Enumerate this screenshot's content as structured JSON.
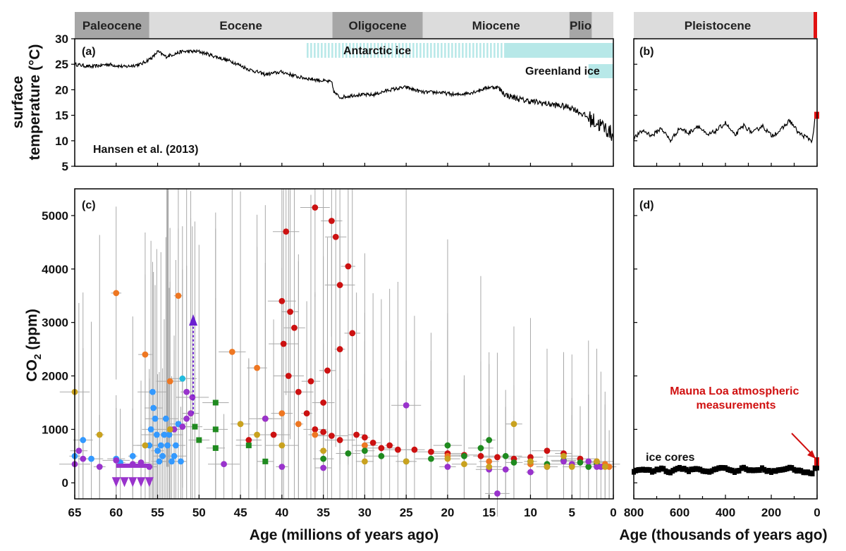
{
  "chart_data": [
    {
      "panel": "(a)",
      "type": "line",
      "title": "",
      "xlabel": "",
      "ylabel_lines": [
        "surface",
        "temperature (°C)"
      ],
      "xlim": [
        65,
        0
      ],
      "ylim": [
        5,
        30
      ],
      "yticks": [
        5,
        10,
        15,
        20,
        25,
        30
      ],
      "annotation": "Hansen et al. (2013)",
      "ice_labels": {
        "antarctic": "Antarctic ice",
        "greenland": "Greenland ice"
      },
      "antarctic_ice": {
        "intermittent": [
          37,
          13
        ],
        "continuous": [
          13,
          0
        ]
      },
      "greenland_ice": {
        "continuous": [
          3,
          0
        ]
      },
      "epochs": [
        {
          "name": "Paleocene",
          "start": 65,
          "end": 56
        },
        {
          "name": "Eocene",
          "start": 56,
          "end": 33.9
        },
        {
          "name": "Oligocene",
          "start": 33.9,
          "end": 23
        },
        {
          "name": "Miocene",
          "start": 23,
          "end": 5.3
        },
        {
          "name": "Plio",
          "start": 5.3,
          "end": 2.6
        }
      ],
      "x": [
        65,
        63,
        61,
        59,
        57,
        55.5,
        55,
        54,
        52,
        50,
        48,
        46,
        44,
        42,
        40,
        38,
        36,
        34,
        33.7,
        33,
        31,
        29,
        27,
        25,
        23,
        21,
        19,
        17,
        15,
        14,
        13,
        11,
        9,
        7,
        5,
        4,
        3,
        2,
        1,
        0
      ],
      "y": [
        25,
        24.5,
        25,
        24.5,
        25,
        26.5,
        27.5,
        26.5,
        27.5,
        27.5,
        26.5,
        25.5,
        24,
        23,
        23.5,
        22.5,
        22,
        21.5,
        19.5,
        18.5,
        19,
        19,
        20,
        20.5,
        19.5,
        19.5,
        19,
        19.5,
        20.5,
        20.5,
        19,
        18,
        17.5,
        17,
        16.5,
        15.5,
        14.5,
        13.5,
        12.5,
        11
      ]
    },
    {
      "panel": "(b)",
      "type": "line",
      "epoch": "Pleistocene",
      "xlim": [
        800,
        0
      ],
      "ylim": [
        5,
        30
      ],
      "x": [
        800,
        760,
        720,
        680,
        640,
        600,
        560,
        520,
        480,
        440,
        400,
        360,
        320,
        280,
        240,
        200,
        160,
        120,
        80,
        40,
        20,
        10,
        0
      ],
      "y": [
        10.5,
        12,
        11,
        12.5,
        10,
        12.5,
        11.5,
        13,
        11,
        12,
        13.5,
        11,
        13,
        11.5,
        13,
        11,
        12,
        14,
        11.5,
        10.5,
        10,
        14.5,
        15
      ],
      "modern_value": 15
    },
    {
      "panel": "(c)",
      "type": "scatter",
      "xlabel": "Age (millions of years ago)",
      "ylabel": "CO2 (ppm)",
      "xlim": [
        65,
        0
      ],
      "ylim": [
        -300,
        5500
      ],
      "xticks": [
        65,
        60,
        55,
        50,
        45,
        40,
        35,
        30,
        25,
        20,
        15,
        10,
        5,
        0
      ],
      "yticks": [
        0,
        1000,
        2000,
        3000,
        4000,
        5000
      ],
      "colors": {
        "red": "#cc1111",
        "orange": "#ee7722",
        "green": "#1f8a1f",
        "blue": "#3399ff",
        "purple": "#9933cc",
        "gold": "#c9a21f",
        "cyan": "#22bbdd",
        "errorbar": "#a9a9a9"
      },
      "series": [
        {
          "color": "red",
          "points": [
            [
              40,
              3400
            ],
            [
              39.5,
              4700
            ],
            [
              39,
              3200
            ],
            [
              38.5,
              2900
            ],
            [
              39.8,
              2600
            ],
            [
              39.2,
              2000
            ],
            [
              38,
              1700
            ],
            [
              36,
              5150
            ],
            [
              34,
              4900
            ],
            [
              33.5,
              4600
            ],
            [
              33,
              3700
            ],
            [
              32,
              4050
            ],
            [
              31.5,
              2800
            ],
            [
              33,
              2500
            ],
            [
              34.5,
              2100
            ],
            [
              35,
              1500
            ],
            [
              36,
              1000
            ],
            [
              35,
              950
            ],
            [
              34,
              880
            ],
            [
              33,
              800
            ],
            [
              31,
              900
            ],
            [
              30,
              850
            ],
            [
              29,
              750
            ],
            [
              28,
              650
            ],
            [
              27,
              700
            ],
            [
              26,
              620
            ],
            [
              24,
              620
            ],
            [
              22,
              580
            ],
            [
              20,
              550
            ],
            [
              18,
              520
            ],
            [
              16,
              500
            ],
            [
              14,
              480
            ],
            [
              12,
              450
            ],
            [
              10,
              480
            ],
            [
              8,
              600
            ],
            [
              6,
              550
            ],
            [
              4,
              450
            ],
            [
              2,
              400
            ],
            [
              44,
              800
            ],
            [
              42,
              1200
            ],
            [
              41,
              900
            ],
            [
              37,
              1300
            ],
            [
              36.5,
              1900
            ]
          ]
        },
        {
          "color": "orange",
          "points": [
            [
              60,
              3550
            ],
            [
              56.5,
              2400
            ],
            [
              53.5,
              1900
            ],
            [
              52.5,
              3500
            ],
            [
              51,
              1300
            ],
            [
              46,
              2450
            ],
            [
              43,
              2150
            ],
            [
              40,
              1300
            ],
            [
              38,
              1100
            ],
            [
              36,
              900
            ],
            [
              30,
              700
            ],
            [
              20,
              500
            ],
            [
              15,
              400
            ],
            [
              10,
              350
            ],
            [
              5,
              350
            ],
            [
              2,
              380
            ],
            [
              1,
              350
            ],
            [
              0.5,
              300
            ]
          ]
        },
        {
          "color": "green",
          "points": [
            [
              50.5,
              1050
            ],
            [
              50,
              800
            ],
            [
              48,
              1500
            ],
            [
              48,
              1000
            ],
            [
              48,
              650
            ],
            [
              44,
              700
            ],
            [
              42,
              400
            ],
            [
              35,
              450
            ],
            [
              32,
              550
            ],
            [
              30,
              600
            ],
            [
              28,
              500
            ],
            [
              25,
              400
            ],
            [
              22,
              450
            ],
            [
              20,
              700
            ],
            [
              18,
              500
            ],
            [
              16,
              650
            ],
            [
              15,
              800
            ],
            [
              13,
              500
            ],
            [
              12,
              380
            ],
            [
              10,
              400
            ],
            [
              8,
              350
            ],
            [
              6,
              420
            ],
            [
              4,
              380
            ],
            [
              3,
              300
            ],
            [
              2,
              350
            ]
          ]
        },
        {
          "color": "blue",
          "points": [
            [
              65,
              500
            ],
            [
              64,
              800
            ],
            [
              63,
              450
            ],
            [
              60,
              450
            ],
            [
              59.5,
              380
            ],
            [
              58,
              500
            ],
            [
              57,
              350
            ],
            [
              56,
              700
            ],
            [
              55.8,
              1000
            ],
            [
              55.6,
              1700
            ],
            [
              55.5,
              1400
            ],
            [
              55.3,
              1200
            ],
            [
              55.1,
              900
            ],
            [
              55,
              600
            ],
            [
              54.8,
              400
            ],
            [
              54.6,
              700
            ],
            [
              54.4,
              500
            ],
            [
              54.2,
              900
            ],
            [
              54,
              1200
            ],
            [
              53.8,
              700
            ],
            [
              53.6,
              900
            ],
            [
              53.3,
              400
            ],
            [
              53,
              500
            ],
            [
              52.8,
              700
            ],
            [
              52.5,
              1100
            ],
            [
              52.2,
              400
            ]
          ]
        },
        {
          "color": "purple",
          "points": [
            [
              65,
              350
            ],
            [
              64.5,
              600
            ],
            [
              64,
              450
            ],
            [
              62,
              300
            ],
            [
              60,
              420
            ],
            [
              58,
              350
            ],
            [
              57,
              380
            ],
            [
              56,
              300
            ],
            [
              53,
              1000
            ],
            [
              52,
              1050
            ],
            [
              51.5,
              1200
            ],
            [
              51,
              1300
            ],
            [
              50.8,
              1600
            ],
            [
              51.5,
              1700
            ],
            [
              47,
              350
            ],
            [
              42,
              1200
            ],
            [
              40,
              300
            ],
            [
              35,
              280
            ],
            [
              25,
              1450
            ],
            [
              20,
              300
            ],
            [
              15,
              250
            ],
            [
              13,
              250
            ],
            [
              10,
              200
            ],
            [
              8,
              300
            ],
            [
              6,
              400
            ],
            [
              5,
              350
            ],
            [
              3,
              400
            ],
            [
              2,
              300
            ],
            [
              1.5,
              300
            ],
            [
              14,
              -200
            ]
          ]
        },
        {
          "color": "gold",
          "points": [
            [
              65,
              1700
            ],
            [
              62,
              900
            ],
            [
              56.5,
              700
            ],
            [
              53.5,
              1000
            ],
            [
              45,
              1100
            ],
            [
              43,
              900
            ],
            [
              40,
              700
            ],
            [
              35,
              600
            ],
            [
              30,
              400
            ],
            [
              25,
              400
            ],
            [
              20,
              450
            ],
            [
              18,
              350
            ],
            [
              15,
              300
            ],
            [
              12,
              1100
            ],
            [
              10,
              400
            ],
            [
              8,
              300
            ],
            [
              6,
              500
            ],
            [
              5,
              300
            ],
            [
              2,
              400
            ],
            [
              1,
              300
            ]
          ]
        },
        {
          "color": "cyan",
          "points": [
            [
              52,
              1950
            ]
          ]
        }
      ],
      "arrow": {
        "x": 50.7,
        "from": 1300,
        "to": 3100
      },
      "markers": {
        "x": [
          60,
          59,
          58,
          57,
          56
        ],
        "y": 0
      },
      "purple_line": {
        "from": 60,
        "to": 56,
        "y": 320
      }
    },
    {
      "panel": "(d)",
      "type": "line",
      "xlabel": "Age (thousands of years ago)",
      "xlim": [
        800,
        0
      ],
      "ylim": [
        -300,
        5500
      ],
      "xticks": [
        800,
        600,
        400,
        200,
        0
      ],
      "series_label": "ice cores",
      "annotation": "Mauna Loa atmospheric measurements",
      "x": [
        800,
        760,
        720,
        680,
        640,
        600,
        560,
        520,
        480,
        440,
        400,
        360,
        320,
        280,
        240,
        200,
        160,
        120,
        80,
        40,
        20,
        10,
        0
      ],
      "y": [
        200,
        260,
        220,
        270,
        190,
        280,
        230,
        260,
        200,
        250,
        290,
        200,
        280,
        220,
        260,
        200,
        250,
        280,
        220,
        190,
        180,
        270,
        280
      ],
      "modern_value": 400
    }
  ]
}
